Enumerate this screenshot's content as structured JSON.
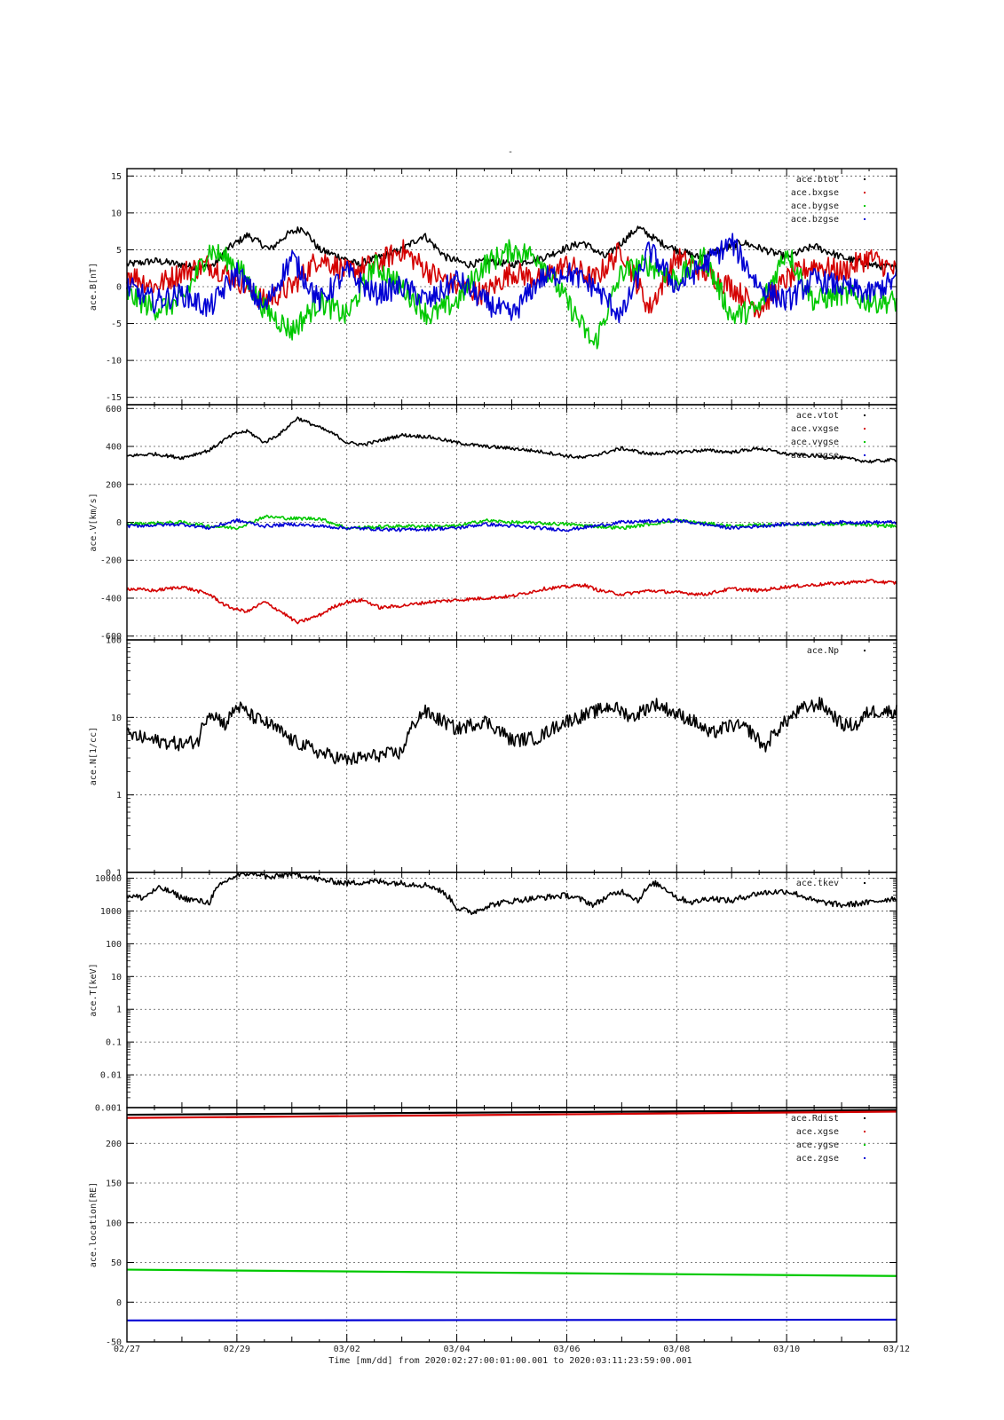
{
  "title": "-",
  "footer": {
    "time_label": "Time [mm/dd]  from 2020:02:27:00:01:00.001  to  2020:03:11:23:59:00.001"
  },
  "chart_data": [
    {
      "type": "scatter",
      "ylabel": "ace.B[nT]",
      "scale": "linear",
      "ylim": [
        -16,
        16
      ],
      "yticks": [
        "15",
        "10",
        "5",
        "0",
        "-5",
        "-10",
        "-15"
      ],
      "yticks_values": [
        15,
        10,
        5,
        0,
        -5,
        -10,
        -15
      ],
      "xticks": [
        "02/27",
        "02/29",
        "03/02",
        "03/04",
        "03/06",
        "03/08",
        "03/10",
        "03/12"
      ],
      "xlim": [
        0,
        14
      ],
      "grid": true,
      "legend_position": "top-right",
      "series": [
        {
          "name": "ace.btot",
          "color": "#000000",
          "x": [
            0,
            0.5,
            1,
            1.3,
            1.6,
            1.8,
            2,
            2.2,
            2.4,
            2.6,
            2.9,
            3.2,
            3.5,
            3.9,
            4.2,
            4.6,
            5,
            5.4,
            5.8,
            6.2,
            6.6,
            7,
            7.3,
            7.6,
            7.9,
            8.3,
            8.7,
            9,
            9.3,
            9.7,
            10,
            10.4,
            10.8,
            11.2,
            11.6,
            12,
            12.5,
            13,
            13.5,
            14
          ],
          "values": [
            3,
            3.5,
            3,
            2.5,
            3,
            5,
            6,
            7,
            6,
            5,
            7,
            8,
            5,
            4,
            3,
            4,
            5,
            7,
            4,
            3,
            3.5,
            3,
            3.5,
            4,
            5,
            6,
            4,
            6,
            8,
            6,
            5,
            4,
            5,
            6,
            5,
            4,
            5.5,
            4,
            3,
            2.5
          ]
        },
        {
          "name": "ace.bxgse",
          "color": "#d40000",
          "x": [
            0,
            0.5,
            1,
            1.5,
            2,
            2.5,
            3,
            3.5,
            4,
            4.5,
            5,
            5.5,
            6,
            6.5,
            7,
            7.5,
            8,
            8.5,
            9,
            9.5,
            10,
            10.5,
            11,
            11.5,
            12,
            12.5,
            13,
            13.5,
            14
          ],
          "values": [
            2,
            0,
            2,
            3,
            1,
            -2,
            0,
            4,
            2,
            3,
            5,
            2,
            0,
            -1,
            2,
            1,
            3,
            1,
            5,
            -3,
            4,
            2,
            0,
            -3,
            1,
            3,
            2,
            4,
            2
          ]
        },
        {
          "name": "ace.bygse",
          "color": "#00c800",
          "x": [
            0,
            0.5,
            1,
            1.5,
            2,
            2.5,
            3,
            3.5,
            4,
            4.5,
            5,
            5.5,
            6,
            6.5,
            7,
            7.5,
            8,
            8.5,
            9,
            9.5,
            10,
            10.5,
            11,
            11.5,
            12,
            12.5,
            13,
            13.5,
            14
          ],
          "values": [
            -1,
            -3,
            -2,
            5,
            3,
            -3,
            -6,
            -2,
            -4,
            3,
            0,
            -4,
            -2,
            3,
            5,
            4,
            -2,
            -8,
            2,
            3,
            1,
            4,
            -4,
            -3,
            5,
            -2,
            -1,
            -2,
            -2
          ]
        },
        {
          "name": "ace.bzgse",
          "color": "#0000d4",
          "x": [
            0,
            0.5,
            1,
            1.5,
            2,
            2.5,
            3,
            3.5,
            4,
            4.5,
            5,
            5.5,
            6,
            6.5,
            7,
            7.5,
            8,
            8.5,
            9,
            9.5,
            10,
            10.5,
            11,
            11.5,
            12,
            12.5,
            13,
            13.5,
            14
          ],
          "values": [
            0,
            -2,
            -1,
            -3,
            2,
            -3,
            4,
            -2,
            2,
            -1,
            0,
            -2,
            1,
            -2,
            -4,
            1,
            2,
            0,
            -4,
            5,
            0,
            3,
            6,
            0,
            -2,
            1,
            0,
            -1,
            1
          ]
        }
      ]
    },
    {
      "type": "scatter",
      "ylabel": "ace.V[km/s]",
      "scale": "linear",
      "ylim": [
        -620,
        620
      ],
      "yticks": [
        "600",
        "400",
        "200",
        "0",
        "-200",
        "-400",
        "-600"
      ],
      "yticks_values": [
        600,
        400,
        200,
        0,
        -200,
        -400,
        -600
      ],
      "xticks": [
        "02/27",
        "02/29",
        "03/02",
        "03/04",
        "03/06",
        "03/08",
        "03/10",
        "03/12"
      ],
      "xlim": [
        0,
        14
      ],
      "grid": true,
      "legend_position": "top-right",
      "series": [
        {
          "name": "ace.vtot",
          "color": "#000000",
          "x": [
            0,
            0.5,
            1,
            1.5,
            1.8,
            2,
            2.2,
            2.5,
            2.8,
            3.1,
            3.5,
            3.8,
            4,
            4.3,
            4.6,
            5,
            5.5,
            6,
            6.5,
            7,
            7.3,
            7.6,
            8,
            8.3,
            8.6,
            9,
            9.5,
            10,
            10.5,
            11,
            11.5,
            12,
            12.5,
            13,
            13.5,
            14
          ],
          "values": [
            350,
            360,
            340,
            380,
            440,
            470,
            480,
            420,
            470,
            550,
            500,
            460,
            420,
            410,
            430,
            460,
            450,
            420,
            400,
            390,
            380,
            370,
            350,
            340,
            360,
            390,
            360,
            370,
            380,
            370,
            390,
            360,
            350,
            340,
            320,
            330
          ]
        },
        {
          "name": "ace.vxgse",
          "color": "#d40000",
          "x": [
            0,
            0.5,
            1,
            1.5,
            1.8,
            2,
            2.2,
            2.5,
            2.8,
            3.1,
            3.5,
            3.8,
            4,
            4.3,
            4.6,
            5,
            5.5,
            6,
            6.5,
            7,
            7.3,
            7.6,
            8,
            8.3,
            8.6,
            9,
            9.5,
            10,
            10.5,
            11,
            11.5,
            12,
            12.5,
            13,
            13.5,
            14
          ],
          "values": [
            -350,
            -360,
            -340,
            -380,
            -440,
            -460,
            -470,
            -420,
            -470,
            -530,
            -490,
            -440,
            -420,
            -410,
            -450,
            -440,
            -420,
            -410,
            -400,
            -390,
            -370,
            -350,
            -340,
            -330,
            -360,
            -380,
            -360,
            -370,
            -380,
            -350,
            -360,
            -340,
            -330,
            -320,
            -310,
            -320
          ]
        },
        {
          "name": "ace.vygse",
          "color": "#00c800",
          "x": [
            0,
            1,
            1.5,
            2,
            2.5,
            3,
            3.5,
            4,
            5,
            6,
            6.5,
            7,
            8,
            9,
            10,
            11,
            12,
            13,
            14
          ],
          "values": [
            -10,
            0,
            -20,
            -30,
            30,
            20,
            20,
            -30,
            -20,
            -20,
            10,
            0,
            -10,
            -30,
            10,
            -20,
            -10,
            -10,
            -20
          ]
        },
        {
          "name": "ace.vzgse",
          "color": "#0000d4",
          "x": [
            0,
            1,
            1.5,
            2,
            2.5,
            3,
            3.5,
            4,
            5,
            6,
            6.5,
            7,
            8,
            9,
            10,
            11,
            12,
            13,
            14
          ],
          "values": [
            -20,
            -10,
            -30,
            10,
            -20,
            -10,
            -20,
            -30,
            -40,
            -30,
            -10,
            -20,
            -40,
            0,
            10,
            -30,
            -10,
            0,
            0
          ]
        }
      ]
    },
    {
      "type": "scatter",
      "ylabel": "ace.N[1/cc]",
      "scale": "log",
      "ylim": [
        0.1,
        100
      ],
      "yticks": [
        "100",
        "10",
        "1",
        "0.1"
      ],
      "yticks_values": [
        100,
        10,
        1,
        0.1
      ],
      "xticks": [
        "02/27",
        "02/29",
        "03/02",
        "03/04",
        "03/06",
        "03/08",
        "03/10",
        "03/12"
      ],
      "xlim": [
        0,
        14
      ],
      "grid": true,
      "legend_position": "top-right",
      "series": [
        {
          "name": "ace.Np",
          "color": "#000000",
          "x": [
            0,
            0.5,
            1,
            1.3,
            1.5,
            1.8,
            2,
            2.3,
            2.6,
            3,
            3.5,
            4,
            4.5,
            5,
            5.4,
            5.6,
            6,
            6.5,
            7,
            7.5,
            8,
            8.4,
            8.8,
            9.2,
            9.6,
            10,
            10.3,
            10.6,
            11,
            11.3,
            11.6,
            12,
            12.3,
            12.6,
            13,
            13.3,
            13.5
          ],
          "values": [
            6,
            5,
            4.5,
            5,
            12,
            8,
            14,
            10,
            8,
            5,
            3.5,
            2.8,
            3.2,
            3.5,
            12,
            10,
            7,
            9,
            5,
            5.5,
            9,
            11,
            14,
            10,
            15,
            11,
            9,
            6,
            8,
            7,
            4,
            9,
            13,
            15,
            8,
            8,
            12
          ]
        }
      ]
    },
    {
      "type": "scatter",
      "ylabel": "ace.T[keV]",
      "scale": "log",
      "ylim": [
        0.001,
        15000
      ],
      "yticks": [
        "10000",
        "1000",
        "100",
        "10",
        "1",
        "0.1",
        "0.01",
        "0.001"
      ],
      "yticks_values": [
        10000,
        1000,
        100,
        10,
        1,
        0.1,
        0.01,
        0.001
      ],
      "xticks": [
        "02/27",
        "02/29",
        "03/02",
        "03/04",
        "03/06",
        "03/08",
        "03/10",
        "03/12"
      ],
      "xlim": [
        0,
        14
      ],
      "grid": true,
      "legend_position": "top-right",
      "series": [
        {
          "name": "ace.tkev",
          "color": "#000000",
          "x": [
            0,
            0.3,
            0.6,
            1,
            1.3,
            1.5,
            1.8,
            2,
            2.3,
            2.6,
            3,
            3.5,
            4,
            4.5,
            5,
            5.5,
            6,
            6.3,
            6.6,
            7,
            7.5,
            8,
            8.5,
            9,
            9.3,
            9.6,
            10,
            10.3,
            10.6,
            11,
            11.5,
            12,
            12.5,
            13,
            13.5,
            14
          ],
          "values": [
            3000,
            2500,
            5000,
            2500,
            2000,
            1800,
            8000,
            12000,
            15000,
            10000,
            14000,
            9000,
            7000,
            8000,
            7000,
            6000,
            1200,
            900,
            1500,
            2000,
            2500,
            3000,
            1500,
            4000,
            2000,
            7000,
            2500,
            1800,
            2500,
            2000,
            3500,
            4000,
            2000,
            1500,
            1800,
            2500
          ]
        }
      ]
    },
    {
      "type": "line",
      "ylabel": "ace.location[RE]",
      "scale": "linear",
      "ylim": [
        -50,
        245
      ],
      "yticks": [
        "200",
        "150",
        "100",
        "50",
        "0",
        "-50"
      ],
      "yticks_values": [
        200,
        150,
        100,
        50,
        0,
        -50
      ],
      "xticks": [
        "02/27",
        "02/29",
        "03/02",
        "03/04",
        "03/06",
        "03/08",
        "03/10",
        "03/12"
      ],
      "xlim": [
        0,
        14
      ],
      "grid": true,
      "legend_position": "top-right",
      "series": [
        {
          "name": "ace.Rdist",
          "color": "#000000",
          "x": [
            0,
            14
          ],
          "values": [
            236,
            242
          ]
        },
        {
          "name": "ace.xgse",
          "color": "#d40000",
          "x": [
            0,
            14
          ],
          "values": [
            232,
            240
          ]
        },
        {
          "name": "ace.ygse",
          "color": "#00c800",
          "x": [
            0,
            14
          ],
          "values": [
            41,
            33
          ]
        },
        {
          "name": "ace.zgse",
          "color": "#0000d4",
          "x": [
            0,
            14
          ],
          "values": [
            -23,
            -22
          ]
        }
      ]
    }
  ]
}
